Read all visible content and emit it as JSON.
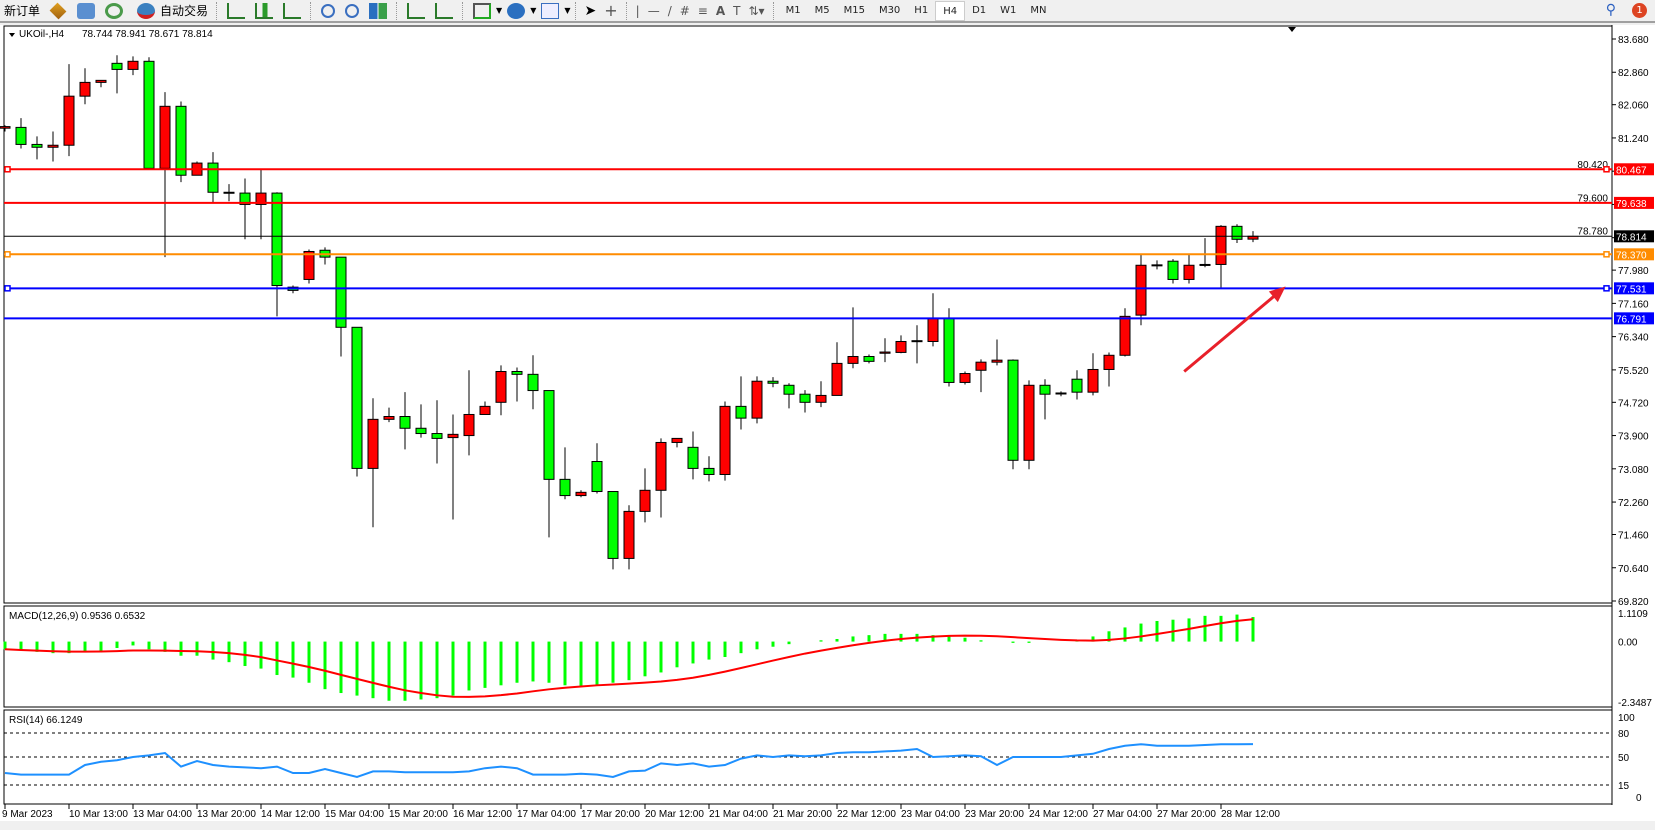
{
  "toolbar": {
    "new_order": "新订单",
    "auto_trading": "自动交易",
    "icons": [
      "market-watch-icon",
      "data-window-icon",
      "signals-icon",
      "auto-trading-icon",
      "bar-chart-icon",
      "candlestick-icon",
      "line-chart-icon",
      "zoom-in-icon",
      "zoom-out-icon",
      "tile-windows-icon",
      "auto-scroll-icon",
      "chart-shift-icon",
      "indicators-icon",
      "periods-icon",
      "templates-icon",
      "cursor-icon",
      "crosshair-icon",
      "vertical-line-icon",
      "horizontal-line-icon",
      "trendline-icon",
      "equidistant-channel-icon",
      "fibonacci-icon",
      "text-icon",
      "text-label-icon",
      "arrows-icon"
    ],
    "timeframes": [
      "M1",
      "M5",
      "M15",
      "M30",
      "H1",
      "H4",
      "D1",
      "W1",
      "MN"
    ],
    "active_timeframe": "H4",
    "notification_count": "1"
  },
  "chart_data": {
    "type": "candlestick",
    "title": "UKOil-,H4",
    "ohlc_label": "78.744 78.941 78.671 78.814",
    "symbol": "UKOil-",
    "timeframe": "H4",
    "colors": {
      "bull": "#ff0000",
      "bear": "#00ff00",
      "outline": "#000000"
    },
    "ylim": [
      69.82,
      83.68
    ],
    "y_ticks": [
      "83.680",
      "82.860",
      "82.060",
      "81.240",
      "80.420",
      "79.600",
      "78.780",
      "77.980",
      "77.160",
      "76.340",
      "75.520",
      "74.720",
      "73.900",
      "73.080",
      "72.260",
      "71.460",
      "70.640",
      "69.820"
    ],
    "x_ticks": [
      {
        "bar": 0,
        "label": "9 Mar 2023"
      },
      {
        "bar": 4,
        "label": "10 Mar 13:00"
      },
      {
        "bar": 8,
        "label": "13 Mar 04:00"
      },
      {
        "bar": 12,
        "label": "13 Mar 20:00"
      },
      {
        "bar": 16,
        "label": "14 Mar 12:00"
      },
      {
        "bar": 20,
        "label": "15 Mar 04:00"
      },
      {
        "bar": 24,
        "label": "15 Mar 20:00"
      },
      {
        "bar": 28,
        "label": "16 Mar 12:00"
      },
      {
        "bar": 32,
        "label": "17 Mar 04:00"
      },
      {
        "bar": 36,
        "label": "17 Mar 20:00"
      },
      {
        "bar": 40,
        "label": "20 Mar 12:00"
      },
      {
        "bar": 44,
        "label": "21 Mar 04:00"
      },
      {
        "bar": 48,
        "label": "21 Mar 20:00"
      },
      {
        "bar": 52,
        "label": "22 Mar 12:00"
      },
      {
        "bar": 56,
        "label": "23 Mar 04:00"
      },
      {
        "bar": 60,
        "label": "23 Mar 20:00"
      },
      {
        "bar": 64,
        "label": "24 Mar 12:00"
      },
      {
        "bar": 68,
        "label": "27 Mar 04:00"
      },
      {
        "bar": 72,
        "label": "27 Mar 20:00"
      },
      {
        "bar": 76,
        "label": "28 Mar 12:00"
      }
    ],
    "candles": [
      [
        81.48,
        81.55,
        81.4,
        81.52
      ],
      [
        81.5,
        81.73,
        80.98,
        81.08
      ],
      [
        81.08,
        81.28,
        80.71,
        81.01
      ],
      [
        81.01,
        81.4,
        80.66,
        81.06
      ],
      [
        81.06,
        83.06,
        80.79,
        82.27
      ],
      [
        82.27,
        82.96,
        82.07,
        82.61
      ],
      [
        82.61,
        82.66,
        82.49,
        82.66
      ],
      [
        83.08,
        83.28,
        82.34,
        82.93
      ],
      [
        82.93,
        83.25,
        82.79,
        83.13
      ],
      [
        83.13,
        83.23,
        80.49,
        80.49
      ],
      [
        80.49,
        82.37,
        78.3,
        82.02
      ],
      [
        82.02,
        82.14,
        80.15,
        80.32
      ],
      [
        80.32,
        80.66,
        80.32,
        80.62
      ],
      [
        80.62,
        80.89,
        79.65,
        79.9
      ],
      [
        79.9,
        80.1,
        79.68,
        79.88
      ],
      [
        79.88,
        80.24,
        78.74,
        79.6
      ],
      [
        79.6,
        80.47,
        78.74,
        79.88
      ],
      [
        79.88,
        79.9,
        76.84,
        77.6
      ],
      [
        77.56,
        77.6,
        77.41,
        77.48
      ],
      [
        77.75,
        78.49,
        77.65,
        78.44
      ],
      [
        78.47,
        78.54,
        78.12,
        78.3
      ],
      [
        78.3,
        78.3,
        75.85,
        76.57
      ],
      [
        76.57,
        76.57,
        72.89,
        73.09
      ],
      [
        73.09,
        74.82,
        71.64,
        74.3
      ],
      [
        74.3,
        74.59,
        74.23,
        74.37
      ],
      [
        74.37,
        74.97,
        73.56,
        74.08
      ],
      [
        74.08,
        74.67,
        73.85,
        73.95
      ],
      [
        73.95,
        74.77,
        73.21,
        73.83
      ],
      [
        73.85,
        74.42,
        71.83,
        73.93
      ],
      [
        73.9,
        75.51,
        73.41,
        74.42
      ],
      [
        74.42,
        74.74,
        74.42,
        74.62
      ],
      [
        74.72,
        75.63,
        74.4,
        75.48
      ],
      [
        75.48,
        75.58,
        74.74,
        75.41
      ],
      [
        75.41,
        75.88,
        74.55,
        75.01
      ],
      [
        75.01,
        75.01,
        71.39,
        72.82
      ],
      [
        72.82,
        73.61,
        72.33,
        72.42
      ],
      [
        72.42,
        72.55,
        72.38,
        72.5
      ],
      [
        73.26,
        73.71,
        72.47,
        72.52
      ],
      [
        72.52,
        72.52,
        70.6,
        70.87
      ],
      [
        70.87,
        72.18,
        70.6,
        72.03
      ],
      [
        72.03,
        73.09,
        71.76,
        72.55
      ],
      [
        72.55,
        73.83,
        71.88,
        73.73
      ],
      [
        73.73,
        73.83,
        73.61,
        73.83
      ],
      [
        73.61,
        74.0,
        72.82,
        73.09
      ],
      [
        73.09,
        73.39,
        72.77,
        72.94
      ],
      [
        72.94,
        74.74,
        72.79,
        74.62
      ],
      [
        74.62,
        75.36,
        74.05,
        74.33
      ],
      [
        74.33,
        75.36,
        74.2,
        75.24
      ],
      [
        75.24,
        75.34,
        75.09,
        75.19
      ],
      [
        75.14,
        75.19,
        74.57,
        74.92
      ],
      [
        74.92,
        75.02,
        74.47,
        74.72
      ],
      [
        74.72,
        75.24,
        74.6,
        74.89
      ],
      [
        74.89,
        76.2,
        74.89,
        75.68
      ],
      [
        75.68,
        77.06,
        75.56,
        75.85
      ],
      [
        75.85,
        75.9,
        75.68,
        75.73
      ],
      [
        75.93,
        76.3,
        75.71,
        75.96
      ],
      [
        75.95,
        76.37,
        75.93,
        76.22
      ],
      [
        76.22,
        76.62,
        75.68,
        76.24
      ],
      [
        76.22,
        77.41,
        76.1,
        76.79
      ],
      [
        76.79,
        77.04,
        75.11,
        75.21
      ],
      [
        75.21,
        75.48,
        75.16,
        75.43
      ],
      [
        75.51,
        75.78,
        74.97,
        75.71
      ],
      [
        75.71,
        76.27,
        75.63,
        75.76
      ],
      [
        75.76,
        75.78,
        73.07,
        73.29
      ],
      [
        73.29,
        75.26,
        73.07,
        75.14
      ],
      [
        75.14,
        75.29,
        74.3,
        74.92
      ],
      [
        74.93,
        74.99,
        74.87,
        74.95
      ],
      [
        75.29,
        75.51,
        74.79,
        74.97
      ],
      [
        74.97,
        75.93,
        74.89,
        75.53
      ],
      [
        75.53,
        75.95,
        75.11,
        75.88
      ],
      [
        75.88,
        77.04,
        75.85,
        76.84
      ],
      [
        76.87,
        78.37,
        76.62,
        78.1
      ],
      [
        78.09,
        78.22,
        78.0,
        78.11
      ],
      [
        78.2,
        78.25,
        77.65,
        77.75
      ],
      [
        77.75,
        78.37,
        77.65,
        78.1
      ],
      [
        78.1,
        78.77,
        78.05,
        78.12
      ],
      [
        78.12,
        79.09,
        77.53,
        79.06
      ],
      [
        79.06,
        79.11,
        78.65,
        78.74
      ],
      [
        78.744,
        78.941,
        78.671,
        78.814
      ]
    ],
    "current_price": {
      "value": 78.814,
      "label": "78.814",
      "color": "#000000"
    },
    "horizontal_lines": [
      {
        "value": 80.467,
        "label": "80.467",
        "color": "#ff0000",
        "handle": true
      },
      {
        "value": 79.638,
        "label": "79.638",
        "color": "#ff0000",
        "handle": false
      },
      {
        "value": 78.37,
        "label": "78.370",
        "color": "#ff8c00",
        "handle": true
      },
      {
        "value": 77.531,
        "label": "77.531",
        "color": "#0000ff",
        "handle": true
      },
      {
        "value": 76.791,
        "label": "76.791",
        "color": "#0000ff",
        "handle": false
      }
    ],
    "arrow": {
      "from": {
        "bar": 73.7,
        "price": 75.48
      },
      "to": {
        "bar": 79.75,
        "price": 77.48
      },
      "color": "#e8202a"
    },
    "macd": {
      "label": "MACD(12,26,9) 0.9536 0.6532",
      "ylim": [
        -2.3487,
        1.1109
      ],
      "y_ticks": [
        "1.1109",
        "0.00",
        "-2.3487"
      ],
      "hist_color": "#00ff00",
      "signal_color": "#ff0000",
      "histogram": [
        -0.3,
        -0.35,
        -0.4,
        -0.45,
        -0.45,
        -0.4,
        -0.35,
        -0.25,
        -0.15,
        -0.3,
        -0.4,
        -0.55,
        -0.55,
        -0.7,
        -0.8,
        -0.95,
        -1.05,
        -1.3,
        -1.4,
        -1.6,
        -1.85,
        -2.0,
        -2.1,
        -2.2,
        -2.3,
        -2.3,
        -2.25,
        -2.2,
        -2.1,
        -1.9,
        -1.8,
        -1.7,
        -1.6,
        -1.55,
        -1.6,
        -1.7,
        -1.75,
        -1.7,
        -1.6,
        -1.5,
        -1.35,
        -1.2,
        -1.0,
        -0.85,
        -0.7,
        -0.6,
        -0.45,
        -0.3,
        -0.2,
        -0.1,
        0,
        0.05,
        0.1,
        0.2,
        0.25,
        0.3,
        0.3,
        0.3,
        0.25,
        0.25,
        0.15,
        0.05,
        0.0,
        -0.05,
        -0.05,
        0.0,
        0.0,
        0.05,
        0.2,
        0.4,
        0.55,
        0.7,
        0.8,
        0.85,
        0.9,
        1.0,
        1.0,
        1.05,
        0.9536
      ],
      "signal_period": 9
    },
    "rsi": {
      "label": "RSI(14) 66.1249",
      "ylim": [
        0,
        100
      ],
      "y_ticks": [
        "100",
        "80",
        "50",
        "15",
        "0"
      ],
      "levels": [
        80,
        50,
        15
      ],
      "color": "#1e90ff",
      "values": [
        30,
        28,
        28,
        28,
        28,
        40,
        44,
        46,
        50,
        52,
        55,
        38,
        45,
        40,
        38,
        37,
        36,
        38,
        30,
        30,
        35,
        30,
        25,
        32,
        32,
        31,
        31,
        31,
        31,
        32,
        36,
        38,
        36,
        28,
        28,
        28,
        29,
        28,
        25,
        32,
        33,
        42,
        40,
        42,
        38,
        40,
        48,
        52,
        50,
        52,
        51,
        52,
        55,
        56,
        56,
        57,
        58,
        60,
        50,
        51,
        52,
        51,
        40,
        50,
        50,
        50,
        50,
        52,
        54,
        60,
        64,
        66,
        64,
        64,
        64,
        65,
        66,
        66,
        66.1249
      ]
    }
  }
}
